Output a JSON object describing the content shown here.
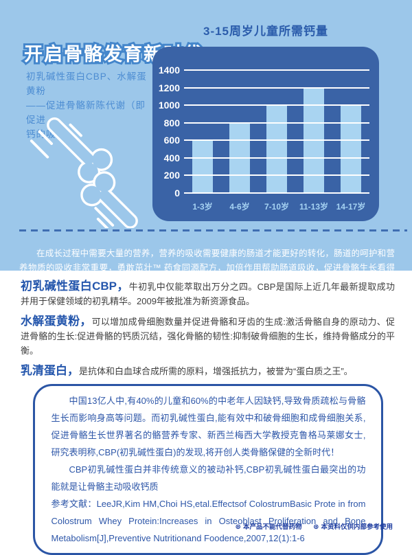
{
  "hero": {
    "title": "开启骨骼发育新时代",
    "subtitle_lines": [
      "初乳碱性蛋白CBP、水解蛋黄粉",
      "——促进骨骼新陈代谢（即促进",
      "钙的吸收）"
    ],
    "paragraph": "在成长过程中需要大量的营养，营养的吸收需要健康的肠道才能更好的转化，肠道的呵护和营养物质的吸收非常重要，勇敢茁壮™ 药食同源配方，加倍作用帮助肠道吸收，促进骨骼生长看得见，身体发育更全面。"
  },
  "chart_data": {
    "type": "bar",
    "title": "3-15周岁儿童所需钙量",
    "categories": [
      "1-3岁",
      "4-6岁",
      "7-10岁",
      "11-13岁",
      "14-17岁"
    ],
    "values": [
      600,
      800,
      1000,
      1200,
      1000
    ],
    "yticks": [
      1400,
      1200,
      1000,
      800,
      600,
      400,
      200,
      0
    ],
    "ylim": [
      0,
      1400
    ],
    "xlabel": "",
    "ylabel": "",
    "grid": true,
    "legend": "none",
    "panel_color": "#3a63a6",
    "bar_color": "#a9d4f1",
    "gridline_color": "#ffffff",
    "ytick_color": "#ffffff",
    "xtick_color": "#a5d2f2"
  },
  "sections": [
    {
      "heading": "初乳碱性蛋白CBP，",
      "text": "牛初乳中仅能萃取出万分之四。CBP是国际上近几年最新提取成功并用于保健领域的初乳精华。2009年被批准为新资源食品。"
    },
    {
      "heading": "水解蛋黄粉，",
      "text": "可以增加成骨细胞数量并促进骨骼和牙齿的生成:激活骨骼自身的原动力、促进骨骼的生长:促进骨骼的钙质沉结，强化骨骼的韧性:抑制破骨细胞的生长，维持骨骼成分的平衡。"
    },
    {
      "heading": "乳清蛋白，",
      "text": "是抗体和白血球合成所需的原料，增强抵抗力，被誉为“蛋白质之王”。"
    }
  ],
  "info_box": {
    "paragraphs": [
      "中国13亿人中,有40%的儿童和60%的中老年人因缺钙,导致骨质疏松与骨骼生长而影响身高等问题。而初乳碱性蛋白,能有效中和破骨细胞和成骨细胞关系,促进骨骼生长世界著名的骼营养专家、新西兰梅西大学教授克鲁格马莱娜女士,研究表明称,CBP(初乳碱性蛋白)的发现,将开创人类骨骼保健的全新时代！",
      "CBP初乳碱性蛋白并非传统意义的被动补钙,CBP初乳碱性蛋白最突出的功能就是让骨骼主动吸收钙质",
      "参考文献：LeeJR,Kim HM,Choi HS,etal.Effectsof ColostrumBasic Prote in from Colostrum Whey Protein:Increases in Osteoblast Proliferation and Bone Metabolism[J],Preventive Nutritionand Foodence,2007,12(1):1-6"
    ]
  },
  "footer": {
    "bullet_icon": "⊛",
    "notes": [
      "本产品不能代替药物",
      "本资料仅供内部参考使用"
    ]
  },
  "colors": {
    "hero_bg": "#9cc7ea",
    "chart_panel": "#3a63a6",
    "bar": "#a9d4f1",
    "heading_blue": "#2456ac",
    "box_blue": "#2d56a8",
    "title_outline": "#4486cb",
    "dash_line": "#3f6eb2"
  }
}
